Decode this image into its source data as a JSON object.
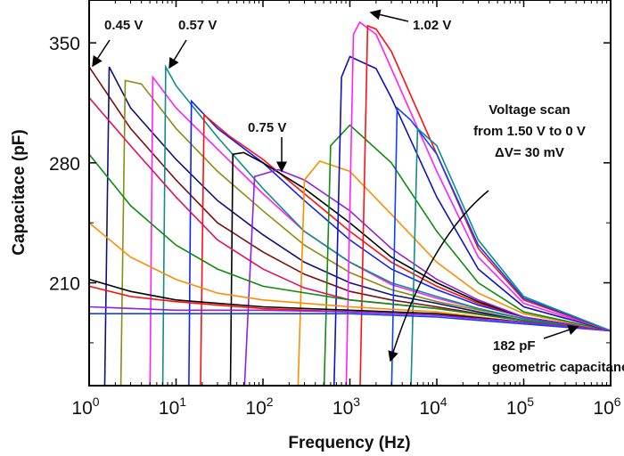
{
  "chart_data": {
    "type": "line",
    "xlabel": "Frequency (Hz)",
    "ylabel": "Capacitace (pF)",
    "xscale": "log",
    "xlim": [
      1,
      1000000
    ],
    "ylim": [
      150,
      375
    ],
    "xticks": [
      {
        "base": "10",
        "exp": "0",
        "v": 1
      },
      {
        "base": "10",
        "exp": "1",
        "v": 10
      },
      {
        "base": "10",
        "exp": "2",
        "v": 100
      },
      {
        "base": "10",
        "exp": "3",
        "v": 1000
      },
      {
        "base": "10",
        "exp": "4",
        "v": 10000
      },
      {
        "base": "10",
        "exp": "5",
        "v": 100000
      },
      {
        "base": "10",
        "exp": "6",
        "v": 1000000
      }
    ],
    "yticks": [
      {
        "label": "350",
        "v": 350
      },
      {
        "label": "280",
        "v": 280
      },
      {
        "label": "210",
        "v": 210
      }
    ],
    "yminor": [
      245,
      175
    ],
    "grid": false,
    "legend": "none",
    "series": [
      {
        "color": "#7a1010",
        "x": [
          1,
          3,
          10,
          30,
          100,
          300,
          1000,
          3000,
          10000,
          30000,
          100000,
          1000000
        ],
        "y": [
          336,
          300,
          270,
          245,
          228,
          215,
          205,
          200,
          196,
          192,
          188,
          182
        ]
      },
      {
        "color": "#10107a",
        "x": [
          1.5,
          1.7,
          3,
          10,
          30,
          100,
          300,
          1000,
          3000,
          10000,
          30000,
          100000,
          1000000
        ],
        "y": [
          140,
          336,
          312,
          282,
          258,
          238,
          222,
          210,
          203,
          198,
          193,
          188,
          182
        ]
      },
      {
        "color": "#8c8c10",
        "x": [
          2.3,
          2.6,
          4,
          10,
          30,
          100,
          300,
          1000,
          3000,
          10000,
          100000,
          1000000
        ],
        "y": [
          140,
          328,
          326,
          300,
          275,
          252,
          232,
          216,
          206,
          199,
          189,
          182
        ]
      },
      {
        "color": "#ff20ff",
        "x": [
          5,
          5.4,
          10,
          30,
          100,
          300,
          1000,
          3000,
          10000,
          30000,
          100000,
          1000000
        ],
        "y": [
          140,
          330,
          312,
          288,
          262,
          240,
          222,
          209,
          201,
          195,
          189,
          182
        ]
      },
      {
        "color": "#108c8c",
        "x": [
          7,
          7.6,
          10,
          30,
          100,
          300,
          1000,
          3000,
          10000,
          30000,
          100000,
          1000000
        ],
        "y": [
          140,
          336,
          325,
          295,
          265,
          240,
          222,
          210,
          202,
          195,
          189,
          182
        ]
      },
      {
        "color": "#1020ff",
        "x": [
          14,
          15,
          30,
          100,
          300,
          1000,
          3000,
          10000,
          30000,
          100000,
          1000000
        ],
        "y": [
          140,
          316,
          300,
          280,
          258,
          235,
          218,
          206,
          197,
          190,
          182
        ]
      },
      {
        "color": "#ff1010",
        "x": [
          19,
          21,
          40,
          100,
          300,
          1000,
          3000,
          10000,
          30000,
          100000,
          1000000
        ],
        "y": [
          140,
          308,
          296,
          282,
          262,
          240,
          222,
          208,
          198,
          190,
          182
        ]
      },
      {
        "color": "#000000",
        "x": [
          42,
          45,
          60,
          100,
          300,
          1000,
          3000,
          10000,
          30000,
          100000,
          1000000
        ],
        "y": [
          140,
          285,
          286,
          280,
          265,
          245,
          225,
          210,
          199,
          190,
          182
        ]
      },
      {
        "color": "#9020e0",
        "x": [
          60,
          80,
          150,
          300,
          1000,
          3000,
          10000,
          30000,
          100000,
          1000000
        ],
        "y": [
          140,
          272,
          276,
          270,
          252,
          230,
          212,
          200,
          190,
          182
        ]
      },
      {
        "color": "#ff8c00",
        "x": [
          250,
          300,
          450,
          1000,
          3000,
          10000,
          30000,
          100000,
          1000000
        ],
        "y": [
          140,
          270,
          281,
          275,
          250,
          222,
          204,
          192,
          182
        ]
      },
      {
        "color": "#108c10",
        "x": [
          500,
          600,
          1000,
          3000,
          10000,
          30000,
          100000,
          1000000
        ],
        "y": [
          140,
          290,
          302,
          280,
          240,
          210,
          193,
          182
        ]
      },
      {
        "color": "#1010c0",
        "x": [
          650,
          800,
          1000,
          2000,
          3000,
          10000,
          30000,
          100000,
          1000000
        ],
        "y": [
          140,
          330,
          342,
          335,
          318,
          260,
          218,
          196,
          182
        ]
      },
      {
        "color": "#ff20ff",
        "x": [
          900,
          1100,
          1300,
          2000,
          3000,
          10000,
          30000,
          100000,
          1000000
        ],
        "y": [
          140,
          355,
          362,
          355,
          335,
          275,
          225,
          198,
          182
        ]
      },
      {
        "color": "#ff1010",
        "x": [
          1300,
          1600,
          2000,
          3000,
          10000,
          30000,
          100000,
          1000000
        ],
        "y": [
          140,
          360,
          358,
          345,
          285,
          230,
          200,
          182
        ]
      },
      {
        "color": "#1040ff",
        "x": [
          3000,
          3500,
          5000,
          10000,
          30000,
          100000,
          1000000
        ],
        "y": [
          140,
          312,
          305,
          285,
          232,
          201,
          182
        ]
      },
      {
        "color": "#108c8c",
        "x": [
          5000,
          6000,
          10000,
          30000,
          100000,
          1000000
        ],
        "y": [
          140,
          300,
          290,
          235,
          202,
          182
        ]
      },
      {
        "color": "#e01060",
        "x": [
          1,
          3,
          10,
          30,
          100,
          300,
          1000,
          10000,
          100000,
          1000000
        ],
        "y": [
          318,
          290,
          260,
          235,
          218,
          207,
          200,
          195,
          188,
          182
        ]
      },
      {
        "color": "#108c10",
        "x": [
          1,
          3,
          10,
          30,
          100,
          1000,
          10000,
          100000,
          1000000
        ],
        "y": [
          285,
          255,
          232,
          218,
          208,
          200,
          195,
          188,
          182
        ]
      },
      {
        "color": "#ff8c00",
        "x": [
          1,
          3,
          10,
          30,
          100,
          1000,
          10000,
          100000,
          1000000
        ],
        "y": [
          245,
          225,
          212,
          204,
          200,
          196,
          193,
          187,
          182
        ]
      },
      {
        "color": "#000000",
        "x": [
          1,
          3,
          10,
          30,
          100,
          1000,
          10000,
          100000,
          1000000
        ],
        "y": [
          212,
          205,
          200,
          198,
          196,
          194,
          192,
          187,
          182
        ]
      },
      {
        "color": "#ff1010",
        "x": [
          1,
          3,
          10,
          30,
          100,
          1000,
          10000,
          100000,
          1000000
        ],
        "y": [
          208,
          202,
          199,
          197,
          195,
          193,
          191,
          187,
          182
        ]
      },
      {
        "color": "#1040ff",
        "x": [
          1,
          10,
          100,
          1000,
          10000,
          100000,
          1000000
        ],
        "y": [
          192,
          192,
          192,
          192,
          190,
          186,
          182
        ]
      },
      {
        "color": "#9020e0",
        "x": [
          1,
          10,
          100,
          1000,
          10000,
          100000,
          1000000
        ],
        "y": [
          196,
          194,
          194,
          193,
          191,
          187,
          182
        ]
      }
    ],
    "annotations": {
      "v045": "0.45 V",
      "v057": "0.57 V",
      "v075": "0.75 V",
      "v102": "1.02 V",
      "scan1": "Voltage scan",
      "scan2": "from 1.50 V to 0 V",
      "scan3": "ΔV= 30 mV",
      "geo1": "182 pF",
      "geo2": "geometric capacitance"
    }
  }
}
